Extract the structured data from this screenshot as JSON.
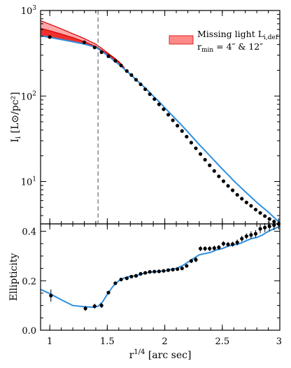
{
  "chart_data": [
    {
      "type": "line",
      "panel": "top",
      "title": "",
      "xlabel": "",
      "ylabel": "I_i [L_sun/pc^2]",
      "ylabel_main": "I",
      "ylabel_sub": "i",
      "ylabel_rest": " [L⊙/pc²]",
      "yscale": "log",
      "xlim": [
        0.92,
        3.0
      ],
      "ylim": [
        3.2,
        1000
      ],
      "yticks": [
        10,
        100,
        1000
      ],
      "ytick_labels": [
        "10¹",
        "10²",
        "10³"
      ],
      "ytick_base": "10",
      "ytick_exps": [
        "1",
        "2",
        "3"
      ],
      "vline_x": 1.42,
      "legend": {
        "position": "top-right",
        "line1": "Missing light L",
        "line1_sub": "i,def",
        "line2": "r",
        "line2_sub": "min",
        "line2_rest": " = 4″ & 12″"
      },
      "points": {
        "x": [
          1.0,
          1.3,
          1.39,
          1.45,
          1.51,
          1.57,
          1.62,
          1.67,
          1.71,
          1.75,
          1.79,
          1.83,
          1.87,
          1.91,
          1.95,
          1.99,
          2.03,
          2.07,
          2.11,
          2.15,
          2.19,
          2.23,
          2.27,
          2.31,
          2.35,
          2.39,
          2.43,
          2.47,
          2.51,
          2.55,
          2.59,
          2.63,
          2.67,
          2.71,
          2.75,
          2.79,
          2.83,
          2.87,
          2.91,
          2.95,
          2.99
        ],
        "y": [
          490,
          425,
          370,
          325,
          292,
          258,
          228,
          196,
          176,
          155,
          137,
          120,
          105,
          92,
          80,
          70,
          60.5,
          52,
          45,
          39,
          33.5,
          28.5,
          24.5,
          21,
          18,
          15.5,
          13.3,
          11.5,
          10.1,
          8.9,
          7.9,
          7.0,
          6.3,
          5.7,
          5.2,
          4.7,
          4.3,
          3.95,
          3.65,
          3.4,
          3.2
        ]
      },
      "model": {
        "x": [
          0.92,
          1.0,
          1.1,
          1.2,
          1.3,
          1.4,
          1.45,
          1.5,
          1.55,
          1.6,
          1.65,
          1.7,
          1.75,
          1.8,
          1.85,
          1.9,
          1.95,
          2.0,
          2.05,
          2.1,
          2.15,
          2.2,
          2.25,
          2.3,
          2.35,
          2.4,
          2.45,
          2.5,
          2.55,
          2.6,
          2.65,
          2.7,
          2.75,
          2.8,
          2.85,
          2.9,
          2.95,
          3.0
        ],
        "y": [
          505,
          485,
          458,
          432,
          405,
          372,
          335,
          300,
          265,
          235,
          205,
          180,
          155,
          135,
          117,
          100,
          86,
          73,
          62,
          53,
          45,
          38,
          32,
          27,
          23,
          19.5,
          16.5,
          14,
          12,
          10.2,
          8.8,
          7.6,
          6.6,
          5.7,
          5.0,
          4.4,
          3.8,
          3.3
        ]
      },
      "missing_light_small": {
        "x": [
          0.92,
          1.0,
          1.1,
          1.2,
          1.3,
          1.4,
          1.45,
          1.5,
          1.55,
          1.6,
          1.65
        ],
        "y_upper": [
          620,
          580,
          530,
          482,
          432,
          380,
          345,
          312,
          280,
          248,
          212
        ],
        "y_lower": [
          505,
          485,
          458,
          432,
          405,
          372,
          335,
          300,
          265,
          235,
          205
        ]
      },
      "missing_light_large": {
        "x": [
          0.92,
          1.0,
          1.1,
          1.2,
          1.3,
          1.4,
          1.45,
          1.5,
          1.55,
          1.6,
          1.65
        ],
        "y_upper": [
          760,
          690,
          610,
          535,
          470,
          405,
          363,
          322,
          287,
          253,
          214
        ],
        "y_lower": [
          505,
          485,
          458,
          432,
          405,
          372,
          335,
          300,
          265,
          235,
          205
        ]
      },
      "colors": {
        "model": "#2e8fe0",
        "band_light": "#ff8a8a",
        "band_dark": "#ee2222",
        "band_edge": "#d40000",
        "vline": "#888888"
      }
    },
    {
      "type": "line",
      "panel": "bottom",
      "title": "",
      "xlabel": "r^1/4 [arc sec]",
      "xlabel_main": "r",
      "xlabel_sup": "1/4",
      "xlabel_rest": " [arc sec]",
      "ylabel": "Ellipticity",
      "xlim": [
        0.92,
        3.0
      ],
      "ylim": [
        0.0,
        0.43
      ],
      "yticks": [
        0.0,
        0.2,
        0.4
      ],
      "ytick_labels": [
        "0.0",
        "0.2",
        "0.4"
      ],
      "xticks": [
        1,
        1.5,
        2,
        2.5,
        3
      ],
      "xtick_labels": [
        "1",
        "1.5",
        "2",
        "2.5",
        "3"
      ],
      "points": {
        "x": [
          1.01,
          1.31,
          1.39,
          1.45,
          1.51,
          1.57,
          1.62,
          1.67,
          1.71,
          1.75,
          1.79,
          1.83,
          1.87,
          1.91,
          1.95,
          1.99,
          2.03,
          2.07,
          2.11,
          2.15,
          2.19,
          2.23,
          2.27,
          2.31,
          2.35,
          2.39,
          2.43,
          2.47,
          2.51,
          2.55,
          2.59,
          2.63,
          2.67,
          2.71,
          2.75,
          2.79,
          2.83,
          2.87,
          2.91,
          2.95,
          2.99
        ],
        "y": [
          0.14,
          0.088,
          0.097,
          0.1,
          0.152,
          0.19,
          0.205,
          0.21,
          0.217,
          0.22,
          0.228,
          0.232,
          0.236,
          0.237,
          0.238,
          0.24,
          0.243,
          0.245,
          0.247,
          0.25,
          0.26,
          0.28,
          0.285,
          0.33,
          0.33,
          0.33,
          0.332,
          0.335,
          0.35,
          0.347,
          0.348,
          0.355,
          0.37,
          0.38,
          0.385,
          0.39,
          0.41,
          0.415,
          0.42,
          0.425,
          0.43
        ],
        "err": [
          0.025,
          0.01,
          0.01,
          0.01,
          0.005,
          0.005,
          0.005,
          0.005,
          0.005,
          0.005,
          0.005,
          0.005,
          0.005,
          0.005,
          0.005,
          0.005,
          0.005,
          0.005,
          0.005,
          0.005,
          0.005,
          0.008,
          0.01,
          0.01,
          0.01,
          0.01,
          0.01,
          0.01,
          0.01,
          0.01,
          0.01,
          0.012,
          0.012,
          0.012,
          0.015,
          0.015,
          0.018,
          0.018,
          0.02,
          0.02,
          0.022
        ]
      },
      "model": {
        "x": [
          0.92,
          1.0,
          1.1,
          1.2,
          1.3,
          1.38,
          1.42,
          1.46,
          1.5,
          1.55,
          1.6,
          1.65,
          1.7,
          1.75,
          1.8,
          1.85,
          1.9,
          1.95,
          2.0,
          2.05,
          2.1,
          2.15,
          2.2,
          2.25,
          2.3,
          2.35,
          2.4,
          2.45,
          2.5,
          2.55,
          2.6,
          2.65,
          2.7,
          2.75,
          2.8,
          2.85,
          2.9,
          2.95,
          3.0
        ],
        "y": [
          0.165,
          0.148,
          0.123,
          0.1,
          0.095,
          0.093,
          0.097,
          0.115,
          0.145,
          0.178,
          0.2,
          0.212,
          0.218,
          0.22,
          0.228,
          0.233,
          0.236,
          0.238,
          0.24,
          0.245,
          0.25,
          0.26,
          0.275,
          0.29,
          0.305,
          0.31,
          0.315,
          0.325,
          0.33,
          0.34,
          0.345,
          0.35,
          0.36,
          0.37,
          0.375,
          0.385,
          0.4,
          0.41,
          0.42
        ]
      },
      "colors": {
        "model": "#2e8fe0"
      }
    }
  ]
}
